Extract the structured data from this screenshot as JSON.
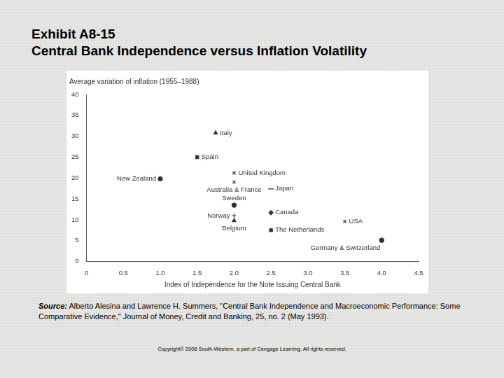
{
  "chart_data": {
    "type": "scatter",
    "title": "Exhibit A8-15",
    "subtitle": "Central Bank Independence versus Inflation Volatility",
    "y_label": "Average variation of inflation (1955–1988)",
    "x_label": "Index of Independence for the Note Issuing Central Bank",
    "xlim": [
      0,
      4.5
    ],
    "xticks": [
      0,
      0.5,
      1,
      1.5,
      2,
      2.5,
      3,
      3.5,
      4,
      4.5
    ],
    "ylim": [
      0,
      40
    ],
    "yticks": [
      0,
      5,
      10,
      15,
      20,
      25,
      30,
      35,
      40
    ],
    "grid": false,
    "series": [
      {
        "name": "Italy",
        "marker": "triangle",
        "color": "#333333",
        "x": [
          1.75
        ],
        "values": [
          30.8
        ]
      },
      {
        "name": "Spain",
        "marker": "square",
        "color": "#333333",
        "x": [
          1.5
        ],
        "values": [
          25
        ]
      },
      {
        "name": "New Zealand",
        "marker": "circle",
        "color": "#333333",
        "x": [
          1
        ],
        "values": [
          19.8
        ]
      },
      {
        "name": "United Kingdom",
        "marker": "x",
        "color": "#333333",
        "x": [
          2
        ],
        "values": [
          21.2
        ]
      },
      {
        "name": "Australia & France",
        "marker": "x",
        "color": "#333333",
        "x": [
          2
        ],
        "values": [
          19
        ]
      },
      {
        "name": "Japan",
        "marker": "dash",
        "color": "#333333",
        "x": [
          2.5
        ],
        "values": [
          17.4
        ]
      },
      {
        "name": "Sweden",
        "marker": "circle",
        "color": "#333333",
        "x": [
          2
        ],
        "values": [
          13.5
        ]
      },
      {
        "name": "Norway",
        "marker": "plus",
        "color": "#333333",
        "x": [
          2
        ],
        "values": [
          11
        ]
      },
      {
        "name": "Belgium",
        "marker": "triangle",
        "color": "#333333",
        "x": [
          2
        ],
        "values": [
          9.8
        ]
      },
      {
        "name": "Canada",
        "marker": "diamond",
        "color": "#333333",
        "x": [
          2.5
        ],
        "values": [
          11.7
        ]
      },
      {
        "name": "The Netherlands",
        "marker": "square",
        "color": "#333333",
        "x": [
          2.5
        ],
        "values": [
          7.5
        ]
      },
      {
        "name": "USA",
        "marker": "x",
        "color": "#333333",
        "x": [
          3.5
        ],
        "values": [
          9.6
        ]
      },
      {
        "name": "Germany & Switzerland",
        "marker": "circle",
        "color": "#333333",
        "x": [
          4
        ],
        "values": [
          5.1
        ]
      }
    ]
  },
  "source": {
    "label": "Source:",
    "text": "Alberto Alesina and Lawrence H. Summers, \"Central Bank Independence and Macroeconomic Performance: Some Comparative Evidence,\" Journal of Money, Credit and Banking, 25, no. 2 (May 1993)."
  },
  "copyright": "Copyright© 2008 South-Western, a part of Cengage Learning. All rights reserved."
}
